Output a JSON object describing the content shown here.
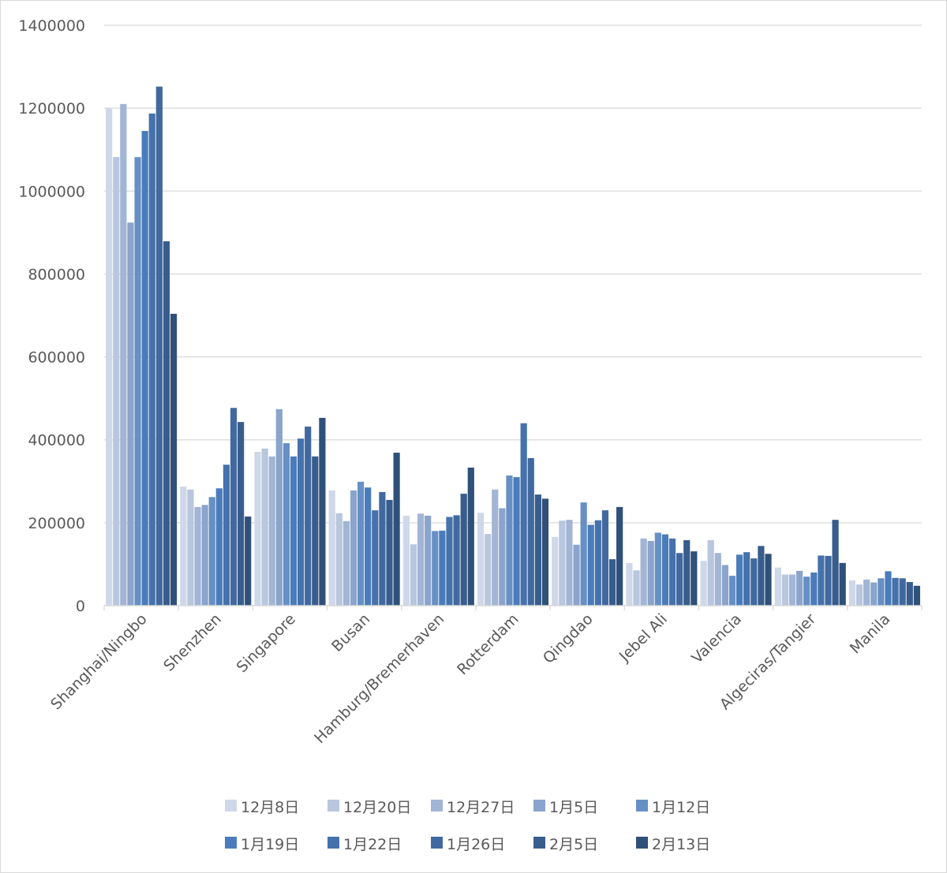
{
  "chart_data": {
    "type": "bar",
    "title": "",
    "xlabel": "",
    "ylabel": "",
    "ylim": [
      0,
      1400000
    ],
    "yticks": [
      0,
      200000,
      400000,
      600000,
      800000,
      1000000,
      1200000,
      1400000
    ],
    "grid": true,
    "legend_position": "bottom",
    "categories": [
      "Shanghai/Ningbo",
      "Shenzhen",
      "Singapore",
      "Busan",
      "Hamburg/Bremerhaven",
      "Rotterdam",
      "Qingdao",
      "Jebel Ali",
      "Valencia",
      "Algeciras/Tangier",
      "Manila"
    ],
    "series": [
      {
        "name": "12月8日",
        "color": "#cfd8e8",
        "values": [
          1200000,
          287000,
          371000,
          278000,
          217000,
          224000,
          166000,
          103000,
          108000,
          92000,
          61000
        ]
      },
      {
        "name": "12月20日",
        "color": "#b8c6de",
        "values": [
          1082000,
          280000,
          379000,
          223000,
          148000,
          173000,
          205000,
          85000,
          158000,
          75000,
          51000
        ]
      },
      {
        "name": "12月27日",
        "color": "#a2b5d4",
        "values": [
          1210000,
          238000,
          360000,
          204000,
          222000,
          280000,
          207000,
          162000,
          127000,
          75000,
          63000
        ]
      },
      {
        "name": "1月5日",
        "color": "#8aa4cc",
        "values": [
          924000,
          243000,
          474000,
          278000,
          217000,
          235000,
          147000,
          156000,
          98000,
          84000,
          56000
        ]
      },
      {
        "name": "1月12日",
        "color": "#6690c4",
        "values": [
          1082000,
          262000,
          392000,
          299000,
          180000,
          314000,
          249000,
          176000,
          72000,
          70000,
          66000
        ]
      },
      {
        "name": "1月19日",
        "color": "#4a7cbb",
        "values": [
          1145000,
          283000,
          360000,
          285000,
          181000,
          310000,
          195000,
          172000,
          123000,
          80000,
          83000
        ]
      },
      {
        "name": "1月22日",
        "color": "#4672ac",
        "values": [
          1187000,
          340000,
          403000,
          230000,
          214000,
          440000,
          206000,
          162000,
          129000,
          121000,
          67000
        ]
      },
      {
        "name": "1月26日",
        "color": "#41699f",
        "values": [
          1252000,
          477000,
          432000,
          274000,
          218000,
          356000,
          230000,
          127000,
          114000,
          120000,
          66000
        ]
      },
      {
        "name": "2月5日",
        "color": "#385d8c",
        "values": [
          879000,
          443000,
          360000,
          255000,
          270000,
          268000,
          112000,
          158000,
          144000,
          207000,
          57000
        ]
      },
      {
        "name": "2月13日",
        "color": "#2f5079",
        "values": [
          704000,
          215000,
          453000,
          369000,
          333000,
          258000,
          238000,
          131000,
          125000,
          103000,
          48000
        ]
      }
    ]
  }
}
